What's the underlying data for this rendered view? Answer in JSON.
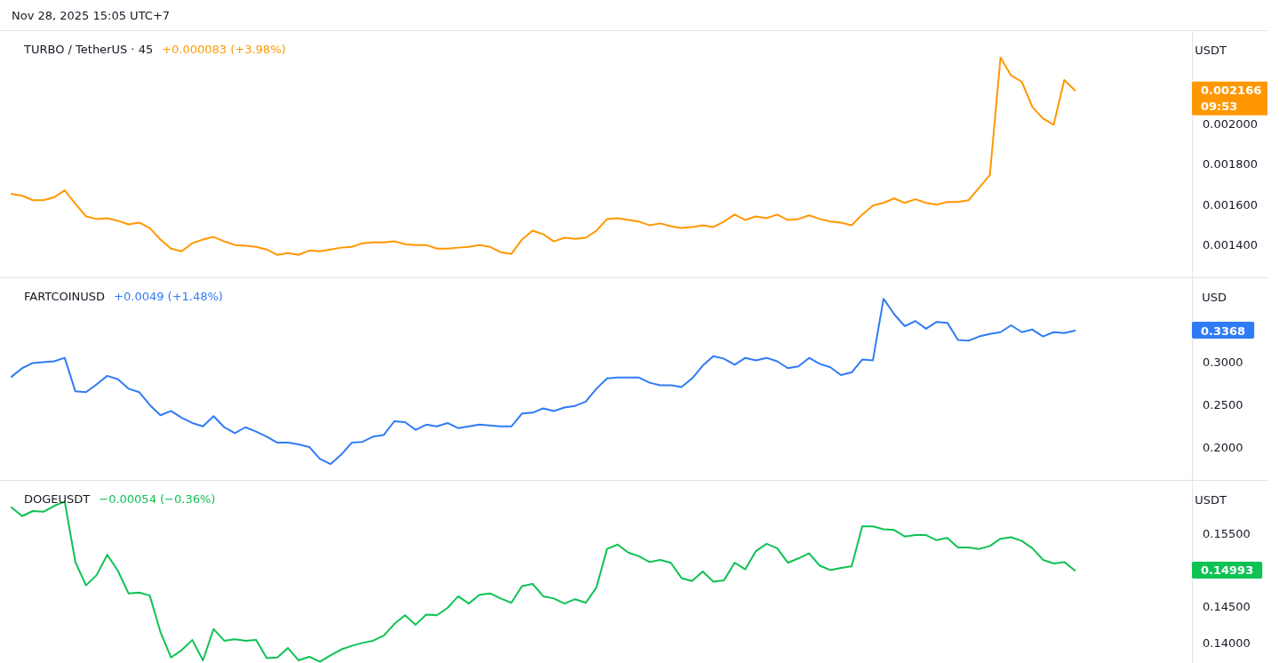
{
  "chart_data": [
    {
      "type": "line",
      "title": "TURBO / TetherUS · 45",
      "subtitle": "+0.000083 (+3.98%)",
      "ylabel": "USDT",
      "grid": false,
      "tick_labels": "y",
      "marker": "none",
      "annotations": [
        "Nov 28, 2025 15:05 UTC+7",
        "0.002166\n09:53"
      ],
      "ylim": [
        0.00124,
        0.00246
      ],
      "yticks": [
        {
          "value": 0.0014,
          "label": "0.001400"
        },
        {
          "value": 0.0016,
          "label": "0.001600"
        },
        {
          "value": 0.0018,
          "label": "0.001800"
        },
        {
          "value": 0.002,
          "label": "0.002000"
        }
      ],
      "categories": [
        null,
        null,
        null,
        null,
        null,
        null,
        null,
        null,
        null,
        null,
        null,
        null,
        null,
        null,
        null,
        null,
        null,
        null,
        null,
        null,
        null,
        null,
        null,
        null,
        null,
        null,
        null,
        null,
        null,
        null,
        null,
        null,
        null,
        null,
        null,
        null,
        null,
        null,
        null,
        null,
        null,
        null,
        null,
        null,
        null,
        null,
        null,
        null,
        null,
        null,
        null,
        null,
        null,
        null,
        null,
        null,
        null,
        null,
        null,
        null,
        null,
        null,
        null,
        null,
        null,
        null,
        null,
        null,
        null,
        null,
        null,
        null,
        null,
        null,
        null,
        null,
        null,
        null,
        null,
        null,
        null,
        null,
        null,
        null,
        null,
        null,
        null,
        null,
        null,
        null,
        null,
        null,
        null,
        null,
        null,
        null,
        null,
        null,
        null,
        null,
        null,
        null,
        null,
        null,
        null,
        null,
        null,
        null,
        null,
        null,
        null,
        null
      ],
      "series": [
        {
          "color": "#ff9800",
          "values": [
            0.001653,
            0.001644,
            0.001622,
            0.001622,
            0.001636,
            0.001671,
            0.001604,
            0.001542,
            0.001529,
            0.001533,
            0.00152,
            0.001502,
            0.001511,
            0.001484,
            0.001427,
            0.001382,
            0.001369,
            0.001409,
            0.001427,
            0.00144,
            0.001418,
            0.0014,
            0.001396,
            0.001391,
            0.001378,
            0.001351,
            0.00136,
            0.001351,
            0.001373,
            0.001369,
            0.001378,
            0.001387,
            0.001391,
            0.001409,
            0.001413,
            0.001413,
            0.001418,
            0.001404,
            0.0014,
            0.0014,
            0.001382,
            0.001382,
            0.001387,
            0.001391,
            0.0014,
            0.001391,
            0.001364,
            0.001356,
            0.001427,
            0.001471,
            0.001453,
            0.001418,
            0.001436,
            0.001431,
            0.001436,
            0.001471,
            0.001529,
            0.001533,
            0.001524,
            0.001516,
            0.001498,
            0.001507,
            0.001493,
            0.001484,
            0.001489,
            0.001498,
            0.001489,
            0.001516,
            0.001551,
            0.001524,
            0.001542,
            0.001533,
            0.001551,
            0.001524,
            0.001529,
            0.001547,
            0.001529,
            0.001516,
            0.001511,
            0.001498,
            0.001551,
            0.001596,
            0.001609,
            0.001631,
            0.001609,
            0.001627,
            0.001609,
            0.0016,
            0.001613,
            0.001613,
            0.001622,
            0.001684,
            0.001747,
            0.002329,
            0.00224,
            0.002209,
            0.002084,
            0.002027,
            0.001996,
            0.002218,
            0.002166,
            null,
            null,
            null,
            null,
            null,
            null,
            null,
            null,
            null,
            null,
            null
          ]
        }
      ]
    },
    {
      "type": "line",
      "title": "FARTCOINUSD",
      "subtitle": "+0.0049 (+1.48%)",
      "ylabel": "USD",
      "grid": false,
      "tick_labels": "y",
      "marker": "none",
      "annotations": [
        "0.3368"
      ],
      "ylim": [
        0.1615,
        0.398
      ],
      "yticks": [
        {
          "value": 0.2,
          "label": "0.2000"
        },
        {
          "value": 0.25,
          "label": "0.2500"
        },
        {
          "value": 0.3,
          "label": "0.3000"
        }
      ],
      "categories": [
        null,
        null,
        null,
        null,
        null,
        null,
        null,
        null,
        null,
        null,
        null,
        null,
        null,
        null,
        null,
        null,
        null,
        null,
        null,
        null,
        null,
        null,
        null,
        null,
        null,
        null,
        null,
        null,
        null,
        null,
        null,
        null,
        null,
        null,
        null,
        null,
        null,
        null,
        null,
        null,
        null,
        null,
        null,
        null,
        null,
        null,
        null,
        null,
        null,
        null,
        null,
        null,
        null,
        null,
        null,
        null,
        null,
        null,
        null,
        null,
        null,
        null,
        null,
        null,
        null,
        null,
        null,
        null,
        null,
        null,
        null,
        null,
        null,
        null,
        null,
        null,
        null,
        null,
        null,
        null,
        null,
        null,
        null,
        null,
        null,
        null,
        null,
        null,
        null,
        null,
        null,
        null,
        null,
        null,
        null,
        null,
        null,
        null,
        null,
        null,
        null,
        null,
        null,
        null,
        null,
        null,
        null,
        null,
        null,
        null,
        null,
        null
      ],
      "series": [
        {
          "color": "#2f7bf5",
          "values": [
            0.283,
            0.293,
            0.299,
            0.3,
            0.301,
            0.305,
            0.266,
            0.265,
            0.274,
            0.284,
            0.28,
            0.269,
            0.265,
            0.25,
            0.238,
            0.243,
            0.235,
            0.229,
            0.225,
            0.237,
            0.224,
            0.217,
            0.224,
            0.219,
            0.213,
            0.206,
            0.206,
            0.204,
            0.201,
            0.187,
            0.181,
            0.192,
            0.206,
            0.207,
            0.213,
            0.215,
            0.231,
            0.23,
            0.221,
            0.227,
            0.225,
            0.229,
            0.223,
            0.225,
            0.227,
            0.226,
            0.225,
            0.225,
            0.24,
            0.241,
            0.246,
            0.243,
            0.247,
            0.249,
            0.254,
            0.269,
            0.281,
            0.282,
            0.282,
            0.282,
            0.276,
            0.273,
            0.273,
            0.271,
            0.281,
            0.296,
            0.307,
            0.304,
            0.297,
            0.305,
            0.302,
            0.305,
            0.301,
            0.293,
            0.295,
            0.305,
            0.298,
            0.294,
            0.285,
            0.288,
            0.303,
            0.302,
            0.374,
            0.356,
            0.342,
            0.348,
            0.339,
            0.347,
            0.346,
            0.326,
            0.325,
            0.33,
            0.333,
            0.335,
            0.343,
            0.335,
            0.338,
            0.33,
            0.335,
            0.334,
            0.3368,
            null,
            null,
            null,
            null,
            null,
            null,
            null,
            null,
            null,
            null,
            null
          ]
        }
      ]
    },
    {
      "type": "line",
      "title": "DOGEUSDT",
      "subtitle": "−0.00054 (−0.36%)",
      "ylabel": "USDT",
      "grid": false,
      "tick_labels": "y",
      "marker": "none",
      "annotations": [
        "0.14993"
      ],
      "ylim": [
        0.13663,
        0.16225
      ],
      "yticks": [
        {
          "value": 0.14,
          "label": "0.14000"
        },
        {
          "value": 0.145,
          "label": "0.14500"
        },
        {
          "value": 0.155,
          "label": "0.15500"
        }
      ],
      "categories": [
        null,
        null,
        null,
        null,
        null,
        null,
        null,
        null,
        null,
        null,
        null,
        null,
        null,
        null,
        null,
        null,
        null,
        null,
        null,
        null,
        null,
        null,
        null,
        null,
        null,
        null,
        null,
        null,
        null,
        null,
        null,
        null,
        null,
        null,
        null,
        null,
        null,
        null,
        null,
        null,
        null,
        null,
        null,
        null,
        null,
        null,
        null,
        null,
        null,
        null,
        null,
        null,
        null,
        null,
        null,
        null,
        null,
        null,
        null,
        null,
        null,
        null,
        null,
        null,
        null,
        null,
        null,
        null,
        null,
        null,
        null,
        null,
        null,
        null,
        null,
        null,
        null,
        null,
        null,
        null,
        null,
        null,
        null,
        null,
        null,
        null,
        null,
        null,
        null,
        null,
        null,
        null,
        null,
        null,
        null,
        null,
        null,
        null,
        null,
        null,
        null,
        null,
        null,
        null,
        null,
        null,
        null,
        null,
        null,
        null,
        null,
        null
      ],
      "series": [
        {
          "color": "#0ec254",
          "values": [
            0.1586,
            0.1574,
            0.1581,
            0.158,
            0.1588,
            0.1594,
            0.1511,
            0.1479,
            0.1493,
            0.1521,
            0.1499,
            0.1468,
            0.1469,
            0.1465,
            0.1415,
            0.138,
            0.139,
            0.1404,
            0.1376,
            0.1419,
            0.1403,
            0.1405,
            0.1403,
            0.1404,
            0.1379,
            0.138,
            0.1393,
            0.1376,
            0.1381,
            0.1374,
            0.1383,
            0.1391,
            0.1396,
            0.14,
            0.1403,
            0.141,
            0.1426,
            0.1438,
            0.1425,
            0.1439,
            0.1438,
            0.1448,
            0.1464,
            0.1454,
            0.1466,
            0.1468,
            0.1461,
            0.1455,
            0.1478,
            0.1481,
            0.1464,
            0.1461,
            0.1454,
            0.146,
            0.1455,
            0.1476,
            0.1529,
            0.1535,
            0.1524,
            0.1519,
            0.1511,
            0.1514,
            0.151,
            0.1489,
            0.1485,
            0.1498,
            0.1484,
            0.1486,
            0.151,
            0.1501,
            0.1526,
            0.1536,
            0.153,
            0.151,
            0.1516,
            0.1523,
            0.1506,
            0.15,
            0.1503,
            0.1505,
            0.156,
            0.156,
            0.1556,
            0.1555,
            0.1546,
            0.1548,
            0.1548,
            0.1541,
            0.1544,
            0.1531,
            0.1531,
            0.1529,
            0.1533,
            0.1543,
            0.1545,
            0.154,
            0.153,
            0.1514,
            0.1509,
            0.1511,
            0.14993,
            null,
            null,
            null,
            null,
            null,
            null,
            null,
            null,
            null,
            null,
            null
          ]
        }
      ]
    }
  ]
}
